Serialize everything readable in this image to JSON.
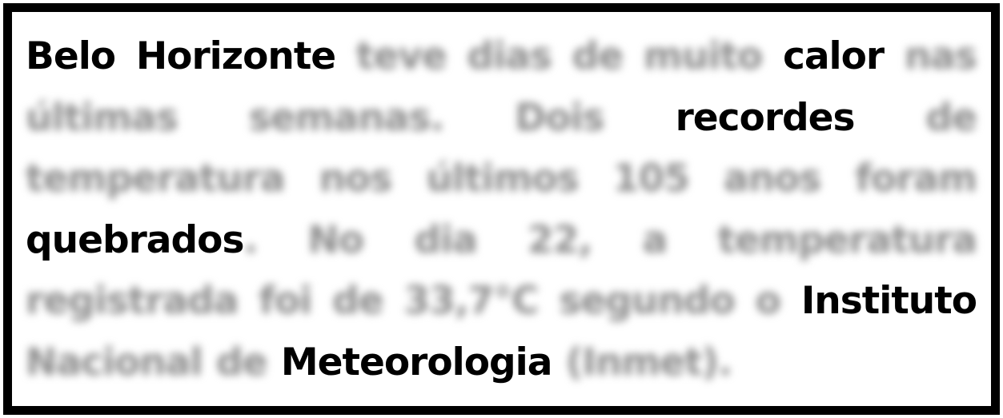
{
  "text_card": {
    "border_color": "#000000",
    "background_color": "#ffffff",
    "sharp_text_color": "#000000",
    "blurred_text_color": "#8c8c8c",
    "sharp_words": {
      "w1": "Belo Horizonte",
      "w2": "calor",
      "w3": "recordes",
      "w4": "quebrados",
      "w5": "Instituto",
      "w6": "Meteorologia"
    },
    "blurred_text": {
      "b1": "teve dias de muito",
      "b2": "nas últimas semanas. Dois",
      "b3": "de temperatura nos últimos 105 anos foram",
      "b4": ". No dia 22, a temperatura registrada foi de 33,7°C segundo o",
      "b5": "Nacional de",
      "b6": "(Inmet)."
    }
  }
}
